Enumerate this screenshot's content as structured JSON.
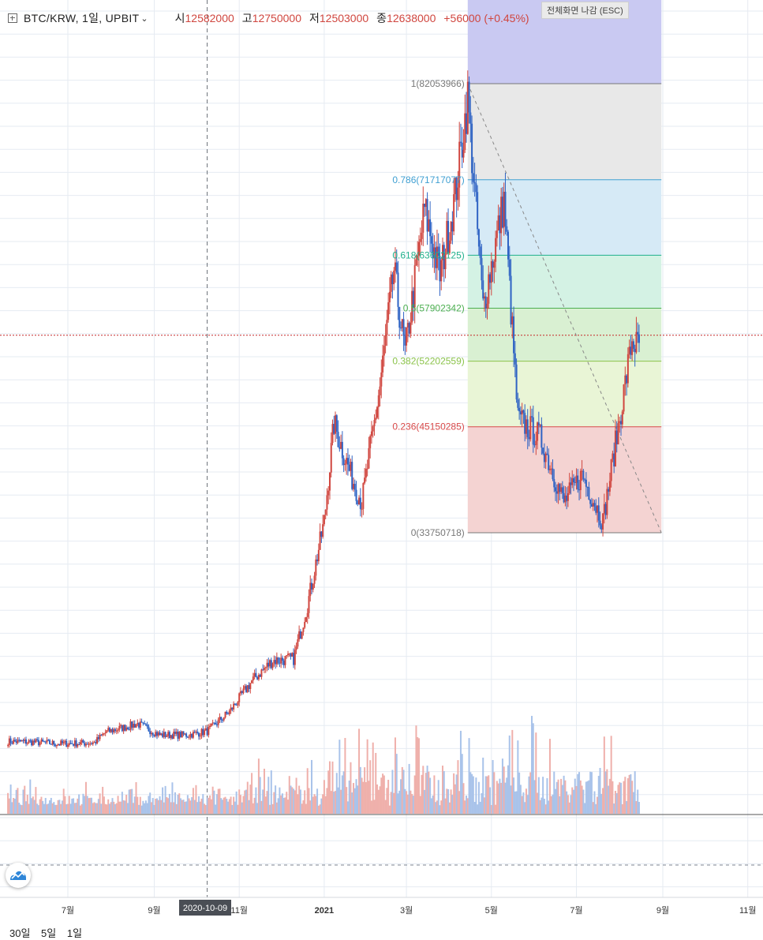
{
  "header": {
    "symbol": "BTC/KRW, 1일, UPBIT",
    "open_label": "시",
    "open": "12582000",
    "high_label": "고",
    "high": "12750000",
    "low_label": "저",
    "low": "12503000",
    "close_label": "종",
    "close": "12638000",
    "change": "+56000 (+0.45%)"
  },
  "exit_fullscreen": "전체화면 나감 (ESC)",
  "crosshair_date": "2020-10-09",
  "range_buttons": [
    "30일",
    "5일",
    "1일"
  ],
  "colors": {
    "up": "#d0463f",
    "down": "#2f63c4",
    "grid": "#e6ebf2",
    "last_price_line": "#c62828",
    "fib_top_band": "#c9c9f2"
  },
  "chart_data": {
    "type": "candlestick",
    "title": "BTC/KRW, 1일, UPBIT",
    "x_tick_labels": [
      "7월",
      "9월",
      "11월",
      "2021",
      "3월",
      "5월",
      "7월",
      "9월",
      "11월"
    ],
    "x_tick_dates": [
      "2020-07-01",
      "2020-09-01",
      "2020-11-01",
      "2021-01-01",
      "2021-03-01",
      "2021-05-01",
      "2021-07-01",
      "2021-09-01",
      "2021-11-01"
    ],
    "price_path": [
      {
        "date": "2020-05-19",
        "close": 11300000
      },
      {
        "date": "2020-06-05",
        "close": 11250000
      },
      {
        "date": "2020-06-25",
        "close": 11050000
      },
      {
        "date": "2020-07-20",
        "close": 11150000
      },
      {
        "date": "2020-07-28",
        "close": 12300000
      },
      {
        "date": "2020-08-20",
        "close": 13200000
      },
      {
        "date": "2020-09-05",
        "close": 12000000
      },
      {
        "date": "2020-09-25",
        "close": 12000000
      },
      {
        "date": "2020-10-09",
        "close": 12400000
      },
      {
        "date": "2020-10-25",
        "close": 14500000
      },
      {
        "date": "2020-11-10",
        "close": 17800000
      },
      {
        "date": "2020-11-25",
        "close": 20000000
      },
      {
        "date": "2020-12-10",
        "close": 20200000
      },
      {
        "date": "2020-12-20",
        "close": 26000000
      },
      {
        "date": "2021-01-01",
        "close": 35000000
      },
      {
        "date": "2021-01-08",
        "close": 45500000
      },
      {
        "date": "2021-01-20",
        "close": 40000000
      },
      {
        "date": "2021-01-28",
        "close": 37000000
      },
      {
        "date": "2021-02-10",
        "close": 49500000
      },
      {
        "date": "2021-02-20",
        "close": 62000000
      },
      {
        "date": "2021-02-28",
        "close": 53000000
      },
      {
        "date": "2021-03-14",
        "close": 68500000
      },
      {
        "date": "2021-03-25",
        "close": 61500000
      },
      {
        "date": "2021-04-05",
        "close": 70000000
      },
      {
        "date": "2021-04-14",
        "close": 80500000
      },
      {
        "date": "2021-04-25",
        "close": 58000000
      },
      {
        "date": "2021-05-10",
        "close": 69500000
      },
      {
        "date": "2021-05-20",
        "close": 46000000
      },
      {
        "date": "2021-06-05",
        "close": 44000000
      },
      {
        "date": "2021-06-22",
        "close": 37000000
      },
      {
        "date": "2021-07-05",
        "close": 40000000
      },
      {
        "date": "2021-07-20",
        "close": 35000000
      },
      {
        "date": "2021-08-01",
        "close": 46000000
      },
      {
        "date": "2021-08-10",
        "close": 54500000
      },
      {
        "date": "2021-08-15",
        "close": 53500000
      }
    ],
    "volume_note": "volume bars, not numerically labelled",
    "fibonacci": {
      "start_date": "2021-04-14",
      "end_date": "2021-08-31",
      "levels": [
        {
          "ratio": "1",
          "price": "82053966",
          "label": "1(82053966)",
          "color": "#787878",
          "fill": "#e8e8e8"
        },
        {
          "ratio": "0.786",
          "price": "71717077",
          "label": "0.786(71717077)",
          "color": "#3f9fd2",
          "fill": "#d6eaf6"
        },
        {
          "ratio": "0.618",
          "price": "63602125",
          "label": "0.618(63602125)",
          "color": "#20b08c",
          "fill": "#d4f2e4"
        },
        {
          "ratio": "0.5",
          "price": "57902342",
          "label": "0.5(57902342)",
          "color": "#4caf50",
          "fill": "#d9f0d2"
        },
        {
          "ratio": "0.382",
          "price": "52202559",
          "label": "0.382(52202559)",
          "color": "#8bc34a",
          "fill": "#e9f5d6"
        },
        {
          "ratio": "0.236",
          "price": "45150285",
          "label": "0.236(45150285)",
          "color": "#d84a4a",
          "fill": "#f4d3d2"
        },
        {
          "ratio": "0",
          "price": "33750718",
          "label": "0(33750718)",
          "color": "#787878",
          "fill": ""
        }
      ]
    },
    "last_price": 55000000,
    "grid": true
  }
}
